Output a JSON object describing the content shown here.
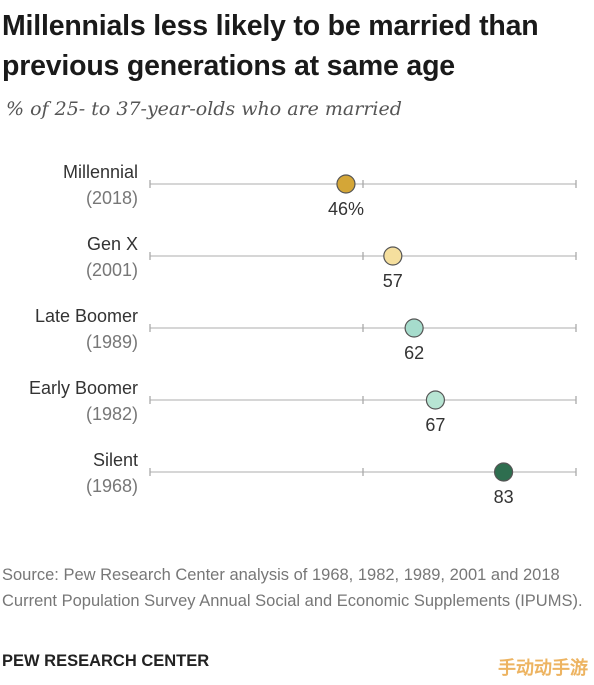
{
  "title": "Millennials less likely to be married than previous generations at same age",
  "subtitle": "% of 25- to 37-year-olds who are married",
  "source": "Source: Pew Research Center analysis of 1968, 1982, 1989, 2001 and 2018 Current Population Survey Annual Social and Economic Supplements (IPUMS).",
  "org": "PEW RESEARCH CENTER",
  "watermark": "手动动手游",
  "chart_data": {
    "type": "scatter",
    "xlim": [
      0,
      100
    ],
    "ticks": [
      0,
      50,
      100
    ],
    "grid": false,
    "categories": [
      {
        "name": "Millennial",
        "year": "(2018)",
        "value": 46,
        "label": "46%",
        "color": "#d4a637"
      },
      {
        "name": "Gen X",
        "year": "(2001)",
        "value": 57,
        "label": "57",
        "color": "#f5df9e"
      },
      {
        "name": "Late Boomer",
        "year": "(1989)",
        "value": 62,
        "label": "62",
        "color": "#a6dccc"
      },
      {
        "name": "Early Boomer",
        "year": "(1982)",
        "value": 67,
        "label": "67",
        "color": "#b7e5d3"
      },
      {
        "name": "Silent",
        "year": "(1968)",
        "value": 83,
        "label": "83",
        "color": "#2e6e4f"
      }
    ]
  }
}
